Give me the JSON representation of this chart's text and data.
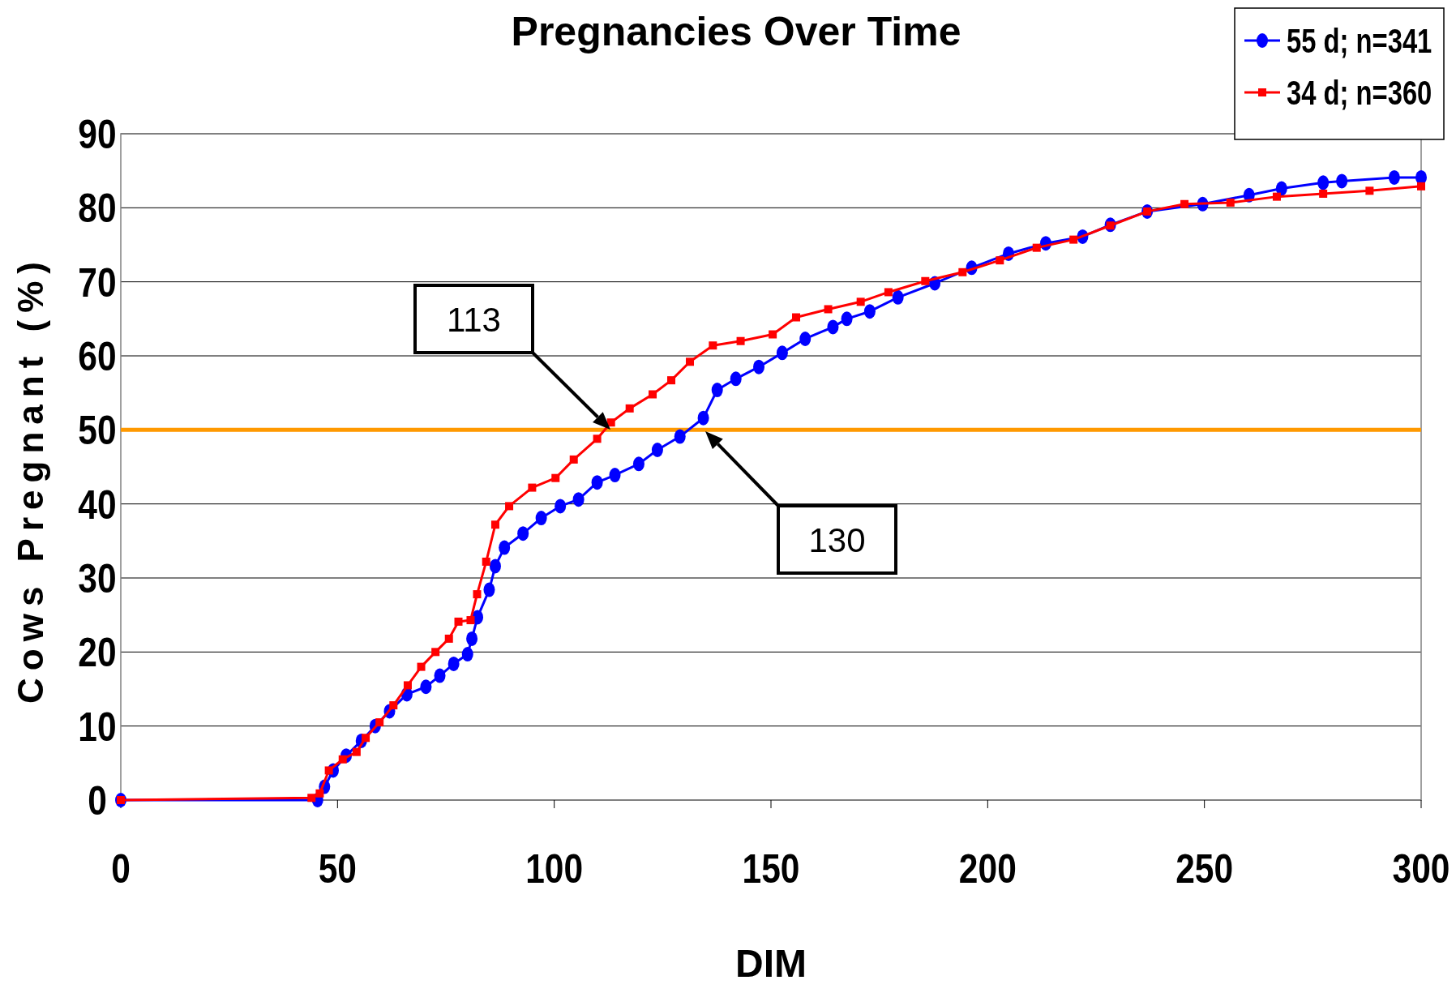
{
  "chart_data": {
    "type": "line",
    "title": "Pregnancies Over Time",
    "xlabel": "DIM",
    "ylabel": "Cows Pregnant (%)",
    "xlim": [
      0,
      300
    ],
    "xticks": [
      0,
      50,
      100,
      150,
      200,
      250,
      300
    ],
    "ylim": [
      0,
      90
    ],
    "yticks": [
      0,
      10,
      20,
      30,
      40,
      50,
      60,
      70,
      80,
      90
    ],
    "grid": "y",
    "legend": "top right",
    "line_style": "solid",
    "ref_lines": [
      {
        "axis": "y",
        "value": 50,
        "label": null,
        "color": "#ff9900"
      }
    ],
    "annotations": [
      "113",
      "130"
    ],
    "series": [
      {
        "name": "55 d; n=341",
        "color": "#0000ff",
        "marker": "circle",
        "x": [
          0,
          45.4,
          47,
          49,
          52,
          55.5,
          58.7,
          62,
          66,
          70.4,
          73.6,
          76.8,
          80,
          81,
          82.3,
          85,
          86.4,
          88.5,
          92.8,
          97,
          101.4,
          105.6,
          109.9,
          114,
          119.5,
          123.8,
          129,
          134.4,
          137.6,
          141.9,
          147.2,
          152.6,
          157.9,
          164.3,
          167.5,
          172.8,
          179.3,
          187.8,
          196.3,
          204.8,
          213.4,
          221.9,
          228.3,
          236.8,
          249.6,
          260.3,
          267.8,
          277.4,
          281.7,
          293.8,
          300
        ],
        "values": [
          0,
          0,
          1.8,
          4,
          6,
          8,
          10,
          12,
          14.3,
          15.3,
          16.8,
          18.4,
          19.7,
          21.8,
          24.7,
          28.4,
          31.6,
          34.1,
          36,
          38.1,
          39.7,
          40.6,
          42.9,
          43.9,
          45.4,
          47.3,
          49.1,
          51.6,
          55.4,
          56.9,
          58.5,
          60.4,
          62.3,
          63.9,
          65,
          66,
          67.9,
          69.8,
          71.9,
          73.8,
          75.2,
          76.1,
          77.7,
          79.5,
          80.5,
          81.7,
          82.6,
          83.4,
          83.6,
          84.1,
          84.1
        ]
      },
      {
        "name": "34 d; n=360",
        "color": "#ff0000",
        "marker": "square",
        "x": [
          0,
          44,
          45.9,
          48,
          51.2,
          54.4,
          56.5,
          59.7,
          62.9,
          66.2,
          69.3,
          72.6,
          75.7,
          77.9,
          80.7,
          82.2,
          84.3,
          86.4,
          89.6,
          94.9,
          100.3,
          104.5,
          109.9,
          113.1,
          117.4,
          122.7,
          127,
          131.3,
          136.6,
          143,
          150.4,
          155.8,
          163.2,
          170.7,
          177.1,
          185.6,
          194.2,
          202.8,
          211.3,
          219.8,
          228.3,
          236.8,
          245.4,
          256,
          266.7,
          277.4,
          288.1,
          300
        ],
        "values": [
          0,
          0.3,
          0.9,
          4,
          5.5,
          6.5,
          8.4,
          10.5,
          12.8,
          15.5,
          18,
          20,
          21.8,
          24.1,
          24.3,
          27.8,
          32.2,
          37.2,
          39.7,
          42.2,
          43.5,
          46,
          48.8,
          51,
          52.9,
          54.8,
          56.7,
          59.2,
          61.4,
          62,
          62.9,
          65.2,
          66.3,
          67.3,
          68.6,
          70.1,
          71.3,
          72.9,
          74.6,
          75.7,
          77.6,
          79.5,
          80.5,
          80.7,
          81.5,
          81.9,
          82.3,
          82.9
        ]
      }
    ]
  }
}
